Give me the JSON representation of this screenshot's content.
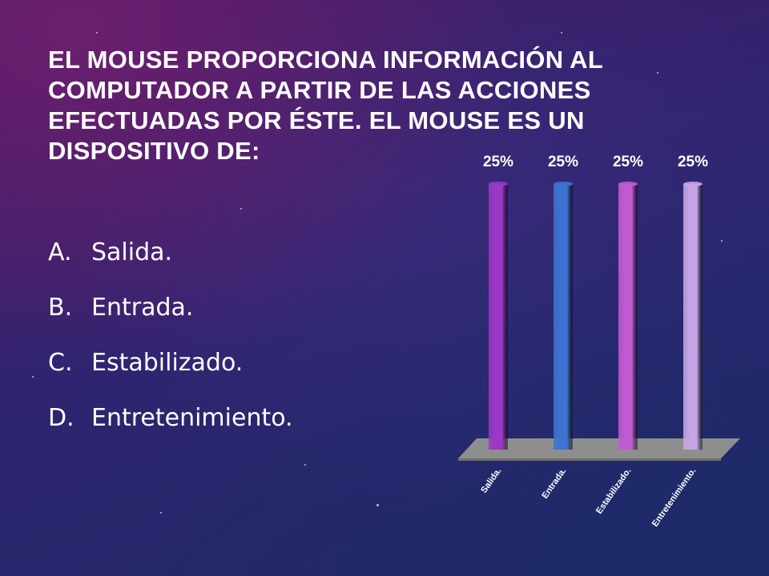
{
  "slide": {
    "title": "EL MOUSE PROPORCIONA INFORMACIÓN AL COMPUTADOR A PARTIR DE LAS ACCIONES EFECTUADAS POR ÉSTE. EL MOUSE ES UN DISPOSITIVO DE:",
    "options": [
      {
        "letter": "A.",
        "text": "Salida."
      },
      {
        "letter": "B.",
        "text": "Entrada."
      },
      {
        "letter": "C.",
        "text": "Estabilizado."
      },
      {
        "letter": "D.",
        "text": "Entretenimiento."
      }
    ]
  },
  "colors": {
    "bar1": "#9b38c4",
    "bar2": "#3f73d2",
    "bar3": "#c25bd2",
    "bar4": "#c7a6e6",
    "floor": "#8e8e8e"
  },
  "chart_data": {
    "type": "bar",
    "categories": [
      "Salida.",
      "Entrada.",
      "Estabilizado.",
      "Entretenimiento."
    ],
    "values": [
      25,
      25,
      25,
      25
    ],
    "data_labels": [
      "25%",
      "25%",
      "25%",
      "25%"
    ],
    "ylim": [
      0,
      25
    ],
    "grid": false
  }
}
